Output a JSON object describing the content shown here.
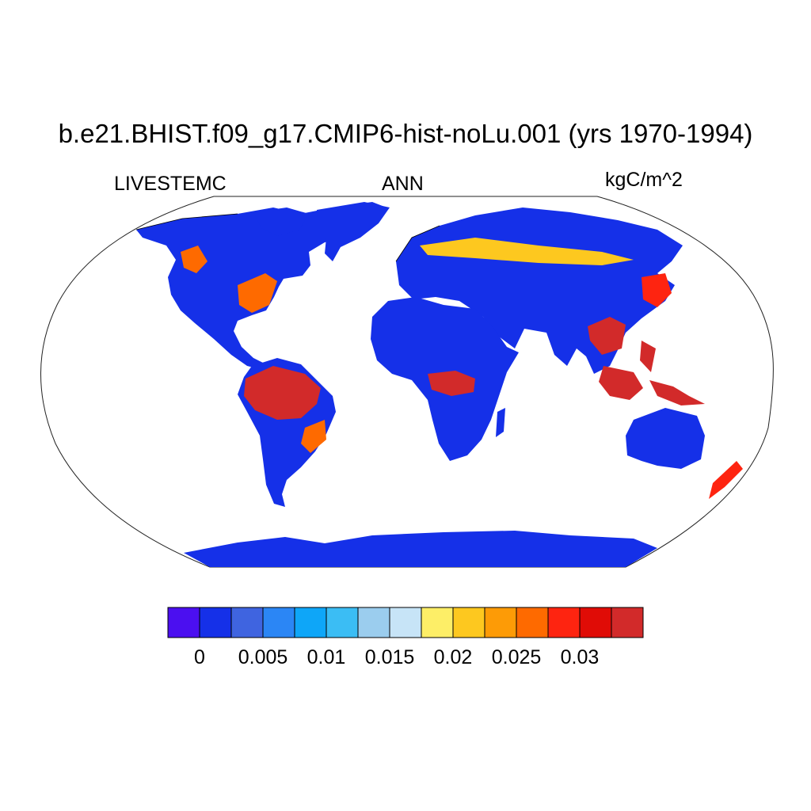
{
  "title": "b.e21.BHIST.f09_g17.CMIP6-hist-noLu.001 (yrs 1970-1994)",
  "left_label": "LIVESTEMC",
  "center_label": "ANN",
  "right_label": "kgC/m^2",
  "projection": "robinson",
  "colorbar": {
    "colors": [
      "#4b0ff0",
      "#1530e8",
      "#3f64e0",
      "#2b86f5",
      "#0ea6f8",
      "#3bbdf4",
      "#9bcdee",
      "#c7e4f7",
      "#fdee67",
      "#fdc81f",
      "#fd9b06",
      "#fe6a00",
      "#fe2410",
      "#e00c06",
      "#d22a2a"
    ],
    "tick_labels": [
      "0",
      "0.005",
      "0.01",
      "0.015",
      "0.02",
      "0.025",
      "0.03"
    ]
  },
  "legend_colors_map": {
    "ocean": "#ffffff",
    "land_low": "#1530e8",
    "land_high": "#d22a2a"
  }
}
